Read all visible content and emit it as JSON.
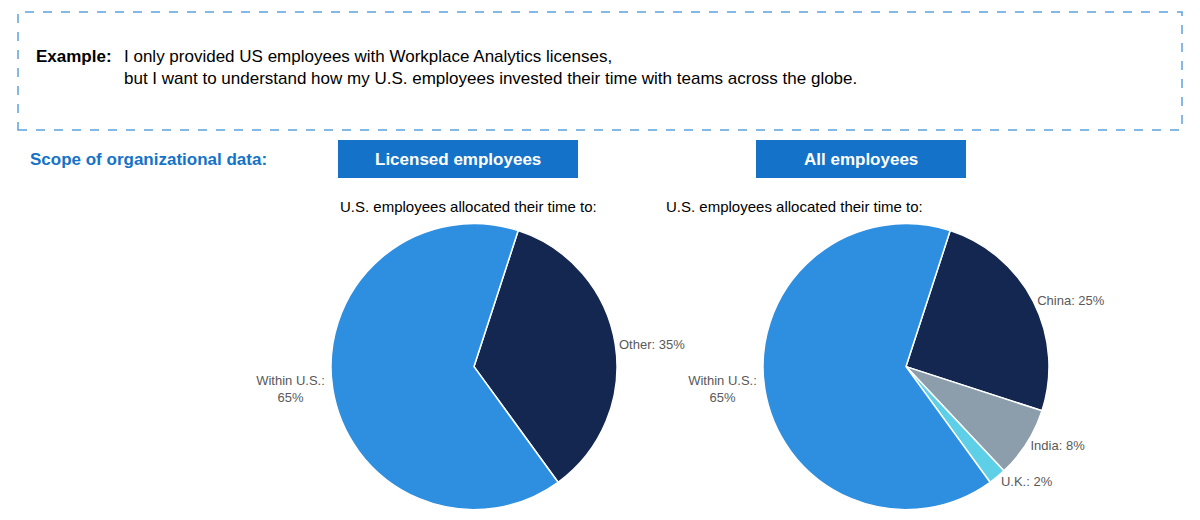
{
  "chart_data": [
    {
      "type": "pie",
      "title": "Licensed employees",
      "subtitle": "U.S. employees allocated their time to:",
      "annotations": [
        "Example:",
        "I only provided US employees with Workplace Analytics licenses,\nbut I want to understand how my U.S. employees invested their time with teams across the globe.",
        "Scope of organizational data:"
      ],
      "categories": [
        "Other",
        "Within U.S."
      ],
      "values": [
        35,
        65
      ],
      "value_labels": [
        "Other: 35%",
        "Within U.S.:\n65%"
      ],
      "colors": [
        "#132750",
        "#2E8FE0"
      ],
      "data_labels": true
    },
    {
      "type": "pie",
      "title": "All employees",
      "subtitle": "U.S. employees allocated their time to:",
      "categories": [
        "China",
        "India",
        "U.K.",
        "Within U.S."
      ],
      "values": [
        25,
        8,
        2,
        65
      ],
      "value_labels": [
        "China: 25%",
        "India: 8%",
        "U.K.: 2%",
        "Within U.S.:\n65%"
      ],
      "colors": [
        "#132750",
        "#8C9DAB",
        "#5DD0E8",
        "#2E8FE0"
      ],
      "data_labels": true
    }
  ]
}
